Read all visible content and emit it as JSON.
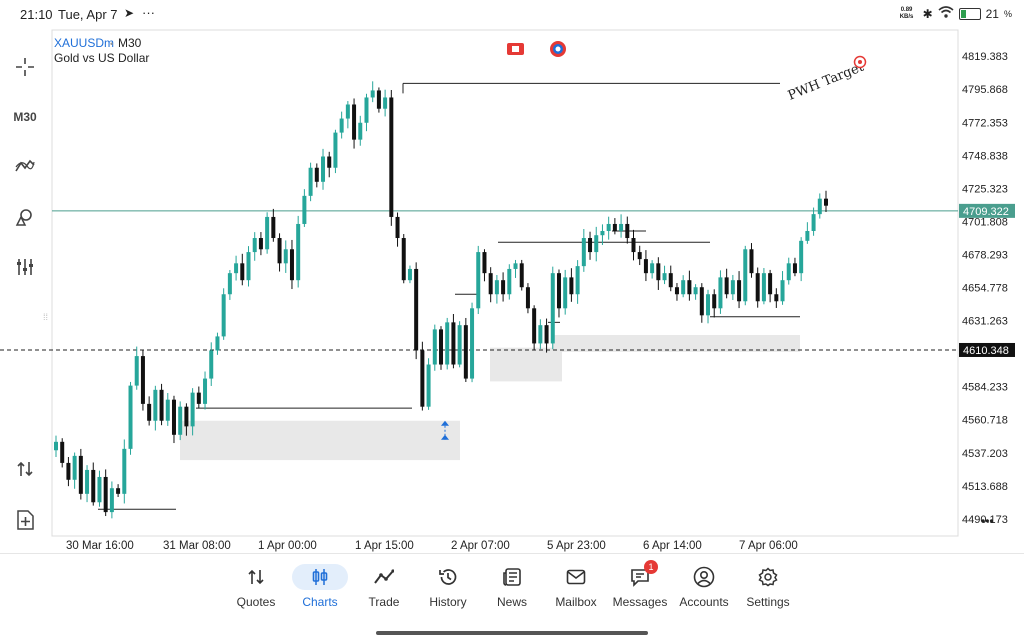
{
  "status_bar": {
    "time": "21:10",
    "date": "Tue, Apr 7",
    "net_speed": "0.89 KB/s",
    "battery": "21"
  },
  "toolbar": {
    "timeframe_label": "M30"
  },
  "chart_header": {
    "symbol": "XAUUSDm",
    "timeframe": "M30",
    "description": "Gold vs US Dollar"
  },
  "annotations": {
    "target_text": "PWH Target"
  },
  "chart_data": {
    "type": "candlestick",
    "title": "XAUUSDm · M30",
    "subtitle": "Gold vs US Dollar",
    "y_ticks": [
      "4819.383",
      "4795.868",
      "4772.353",
      "4748.838",
      "4725.323",
      "4701.808",
      "4678.293",
      "4654.778",
      "4631.263",
      "4584.233",
      "4560.718",
      "4537.203",
      "4513.688",
      "4490.173"
    ],
    "x_ticks": [
      "30 Mar 16:00",
      "31 Mar 08:00",
      "1 Apr 00:00",
      "1 Apr 15:00",
      "2 Apr 07:00",
      "5 Apr 23:00",
      "6 Apr 14:00",
      "7 Apr 06:00"
    ],
    "ylim": [
      4478,
      4838
    ],
    "bid_line": {
      "value": 4709.322,
      "label": "4709.322"
    },
    "dashed_line": {
      "value": 4610.348,
      "label": "4610.348"
    },
    "pwh_target_level": 4800,
    "horizontal_levels": [
      4497,
      4569,
      4650,
      4687,
      4695,
      4634,
      4630
    ],
    "demand_zones": [
      [
        4532,
        4560
      ],
      [
        4588,
        4612
      ],
      [
        4609,
        4621
      ]
    ],
    "bullish_color": "#26a69a",
    "bearish_color": "#111111",
    "bid_line_color": "#4a9e8e",
    "path": [
      4545,
      4530,
      4518,
      4535,
      4508,
      4525,
      4502,
      4520,
      4495,
      4512,
      4508,
      4540,
      4585,
      4606,
      4572,
      4560,
      4582,
      4560,
      4575,
      4550,
      4570,
      4556,
      4580,
      4572,
      4590,
      4610,
      4620,
      4650,
      4665,
      4672,
      4660,
      4680,
      4690,
      4682,
      4705,
      4690,
      4672,
      4682,
      4660,
      4700,
      4720,
      4740,
      4730,
      4748,
      4740,
      4765,
      4775,
      4785,
      4760,
      4772,
      4790,
      4795,
      4782,
      4790,
      4705,
      4690,
      4660,
      4668,
      4610,
      4570,
      4600,
      4625,
      4600,
      4630,
      4600,
      4628,
      4590,
      4640,
      4680,
      4665,
      4650,
      4660,
      4650,
      4668,
      4672,
      4655,
      4640,
      4615,
      4628,
      4615,
      4665,
      4640,
      4662,
      4650,
      4670,
      4690,
      4680,
      4692,
      4695,
      4700,
      4695,
      4700,
      4690,
      4680,
      4675,
      4665,
      4672,
      4660,
      4665,
      4655,
      4650,
      4660,
      4650,
      4655,
      4635,
      4650,
      4640,
      4662,
      4650,
      4660,
      4645,
      4682,
      4665,
      4645,
      4665,
      4650,
      4645,
      4660,
      4672,
      4665,
      4688,
      4695,
      4707,
      4718,
      4713
    ],
    "markers": [
      {
        "type": "buy",
        "at_value": 4560
      }
    ]
  },
  "bottom_nav": [
    {
      "label": "Quotes",
      "icon": "quotes-icon"
    },
    {
      "label": "Charts",
      "icon": "charts-icon",
      "active": true
    },
    {
      "label": "Trade",
      "icon": "trade-icon"
    },
    {
      "label": "History",
      "icon": "history-icon"
    },
    {
      "label": "News",
      "icon": "news-icon"
    },
    {
      "label": "Mailbox",
      "icon": "mailbox-icon"
    },
    {
      "label": "Messages",
      "icon": "messages-icon",
      "badge": "1"
    },
    {
      "label": "Accounts",
      "icon": "accounts-icon"
    },
    {
      "label": "Settings",
      "icon": "settings-icon"
    }
  ]
}
